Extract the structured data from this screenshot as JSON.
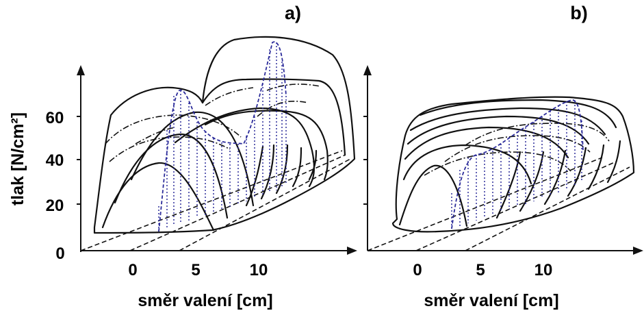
{
  "chart_data": [
    {
      "type": "surface-3d",
      "panel_label": "a)",
      "ylabel": "tlak [N/cm²]",
      "xlabel": "směr valení [cm]",
      "y_ticks": [
        "0",
        "20",
        "40",
        "60"
      ],
      "x_ticks": [
        "0",
        "5",
        "10"
      ],
      "ylim": [
        0,
        75
      ],
      "xlim": [
        -4,
        16
      ],
      "profiles": [
        {
          "x": [
            -3.0,
            -2.0,
            -0.5,
            1.0,
            2.5,
            4.0
          ],
          "y": [
            8,
            24,
            34,
            38,
            30,
            8
          ]
        },
        {
          "x": [
            -2.5,
            -1.0,
            1.0,
            3.5,
            5.0,
            6.0
          ],
          "y": [
            10,
            40,
            52,
            54,
            44,
            10
          ]
        },
        {
          "x": [
            -2.5,
            -0.5,
            2.0,
            4.5,
            6.5,
            7.5
          ],
          "y": [
            12,
            55,
            66,
            68,
            58,
            14
          ]
        },
        {
          "x": [
            -1.5,
            1.0,
            4.0,
            7.0,
            9.0,
            10.0
          ],
          "y": [
            16,
            62,
            72,
            74,
            64,
            18
          ]
        }
      ],
      "peak_trace": {
        "x": [
          3.0,
          5.5,
          8.0,
          10.5,
          11.5
        ],
        "y": [
          72,
          50,
          44,
          66,
          86
        ]
      }
    },
    {
      "type": "surface-3d",
      "panel_label": "b)",
      "xlabel": "směr valení [cm]",
      "x_ticks": [
        "0",
        "5",
        "10"
      ],
      "ylim": [
        0,
        75
      ],
      "xlim": [
        -4,
        16
      ],
      "profiles": [
        {
          "x": [
            -2.0,
            -1.0,
            0.5,
            2.0,
            3.0
          ],
          "y": [
            14,
            32,
            36,
            30,
            10
          ]
        },
        {
          "x": [
            -2.5,
            -0.5,
            2.0,
            4.0,
            5.5
          ],
          "y": [
            18,
            44,
            48,
            42,
            14
          ]
        },
        {
          "x": [
            -2.5,
            0.0,
            3.0,
            6.0,
            8.0
          ],
          "y": [
            22,
            52,
            56,
            52,
            18
          ]
        },
        {
          "x": [
            -2.0,
            1.0,
            5.0,
            8.5,
            11.0
          ],
          "y": [
            26,
            58,
            62,
            58,
            22
          ]
        }
      ],
      "peak_trace": {
        "x": [
          3.5,
          6.0,
          8.5,
          11.0,
          12.0
        ],
        "y": [
          40,
          52,
          58,
          64,
          66
        ]
      }
    }
  ]
}
